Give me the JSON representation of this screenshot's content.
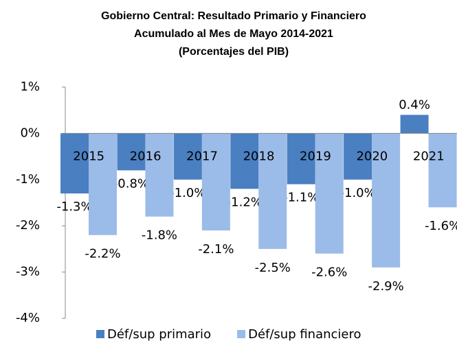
{
  "chart_data": {
    "type": "bar",
    "title": [
      "Gobierno Central: Resultado Primario y Financiero",
      "Acumulado al Mes de Mayo 2014-2021",
      "(Porcentajes del PIB)"
    ],
    "categories": [
      "2015",
      "2016",
      "2017",
      "2018",
      "2019",
      "2020",
      "2021"
    ],
    "series": [
      {
        "name": "Déf/sup primario",
        "color": "#4a7fc1",
        "values": [
          -1.3,
          -0.8,
          -1.0,
          -1.2,
          -1.1,
          -1.0,
          0.4
        ],
        "value_labels": [
          "-1.3%",
          "-0.8%",
          "-1.0%",
          "-1.2%",
          "-1.1%",
          "-1.0%",
          "0.4%"
        ]
      },
      {
        "name": "Déf/sup financiero",
        "color": "#9bbbe8",
        "values": [
          -2.2,
          -1.8,
          -2.1,
          -2.5,
          -2.6,
          -2.9,
          -1.6
        ],
        "value_labels": [
          "-2.2%",
          "-1.8%",
          "-2.1%",
          "-2.5%",
          "-2.6%",
          "-2.9%",
          "-1.6%"
        ]
      }
    ],
    "ylim": [
      -4,
      1
    ],
    "yticks": [
      {
        "value": -4,
        "label": "-4%"
      },
      {
        "value": -3,
        "label": "-3%"
      },
      {
        "value": -2,
        "label": "-2%"
      },
      {
        "value": -1,
        "label": "-1%"
      },
      {
        "value": 0,
        "label": "0%"
      },
      {
        "value": 1,
        "label": "1%"
      }
    ],
    "legend": "bottom"
  }
}
